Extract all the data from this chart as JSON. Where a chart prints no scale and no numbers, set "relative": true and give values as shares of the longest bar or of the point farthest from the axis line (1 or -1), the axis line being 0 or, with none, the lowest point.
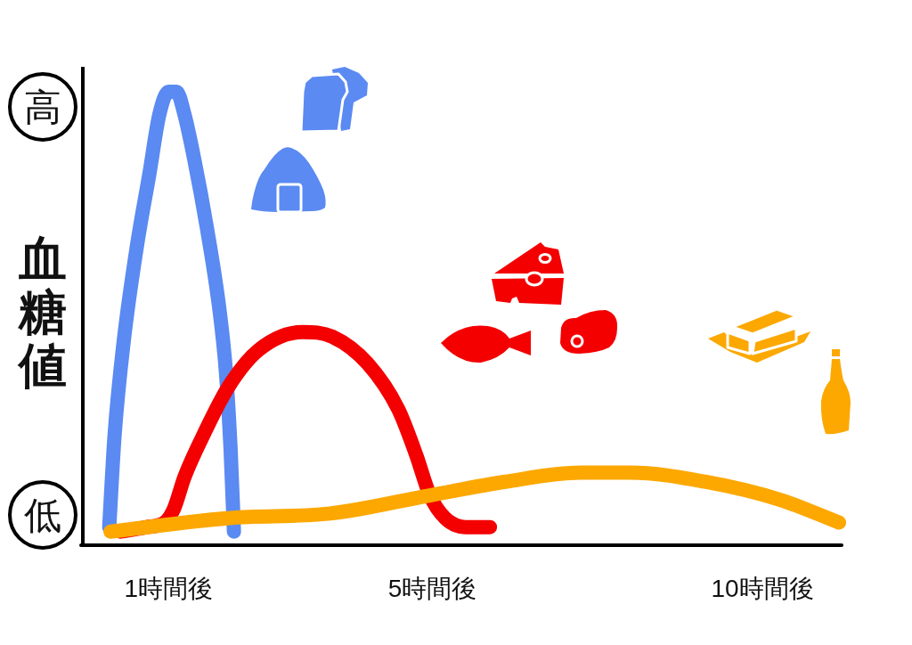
{
  "chart_data": {
    "type": "line",
    "relative": true,
    "ylabel": "血糖値",
    "annotations": [
      "高",
      "低"
    ],
    "xlim": [
      -0.3,
      11.2
    ],
    "xticks": [
      {
        "value": 1,
        "label": "1時間後"
      },
      {
        "value": 5,
        "label": "5時間後"
      },
      {
        "value": 10,
        "label": "10時間後"
      }
    ],
    "marker": "none",
    "line_style": "solid",
    "series": [
      {
        "color": "#5a8af2",
        "x": [
          0.1,
          0.18,
          0.32,
          0.52,
          0.71,
          0.86,
          1.0,
          1.12,
          1.24,
          1.39,
          1.58,
          1.77,
          1.87,
          1.94,
          1.99
        ],
        "values": [
          0.04,
          0.24,
          0.45,
          0.66,
          0.82,
          0.95,
          1.0,
          1.0,
          0.95,
          0.85,
          0.7,
          0.52,
          0.38,
          0.21,
          0.03
        ]
      },
      {
        "color": "#f40000",
        "x": [
          0.27,
          0.67,
          0.94,
          1.08,
          1.24,
          1.55,
          1.91,
          2.36,
          3.03,
          3.48,
          4.02,
          4.48,
          4.75,
          4.96,
          5.19,
          5.5,
          5.87
        ],
        "values": [
          0.03,
          0.04,
          0.05,
          0.08,
          0.15,
          0.25,
          0.35,
          0.43,
          0.47,
          0.46,
          0.4,
          0.3,
          0.2,
          0.11,
          0.06,
          0.04,
          0.04
        ]
      },
      {
        "color": "#fca800",
        "x": [
          0.12,
          1.93,
          3.45,
          4.96,
          6.1,
          7.25,
          8.0,
          9.13,
          10.27,
          11.16
        ],
        "values": [
          0.03,
          0.06,
          0.07,
          0.11,
          0.14,
          0.16,
          0.16,
          0.14,
          0.1,
          0.05
        ]
      }
    ]
  }
}
